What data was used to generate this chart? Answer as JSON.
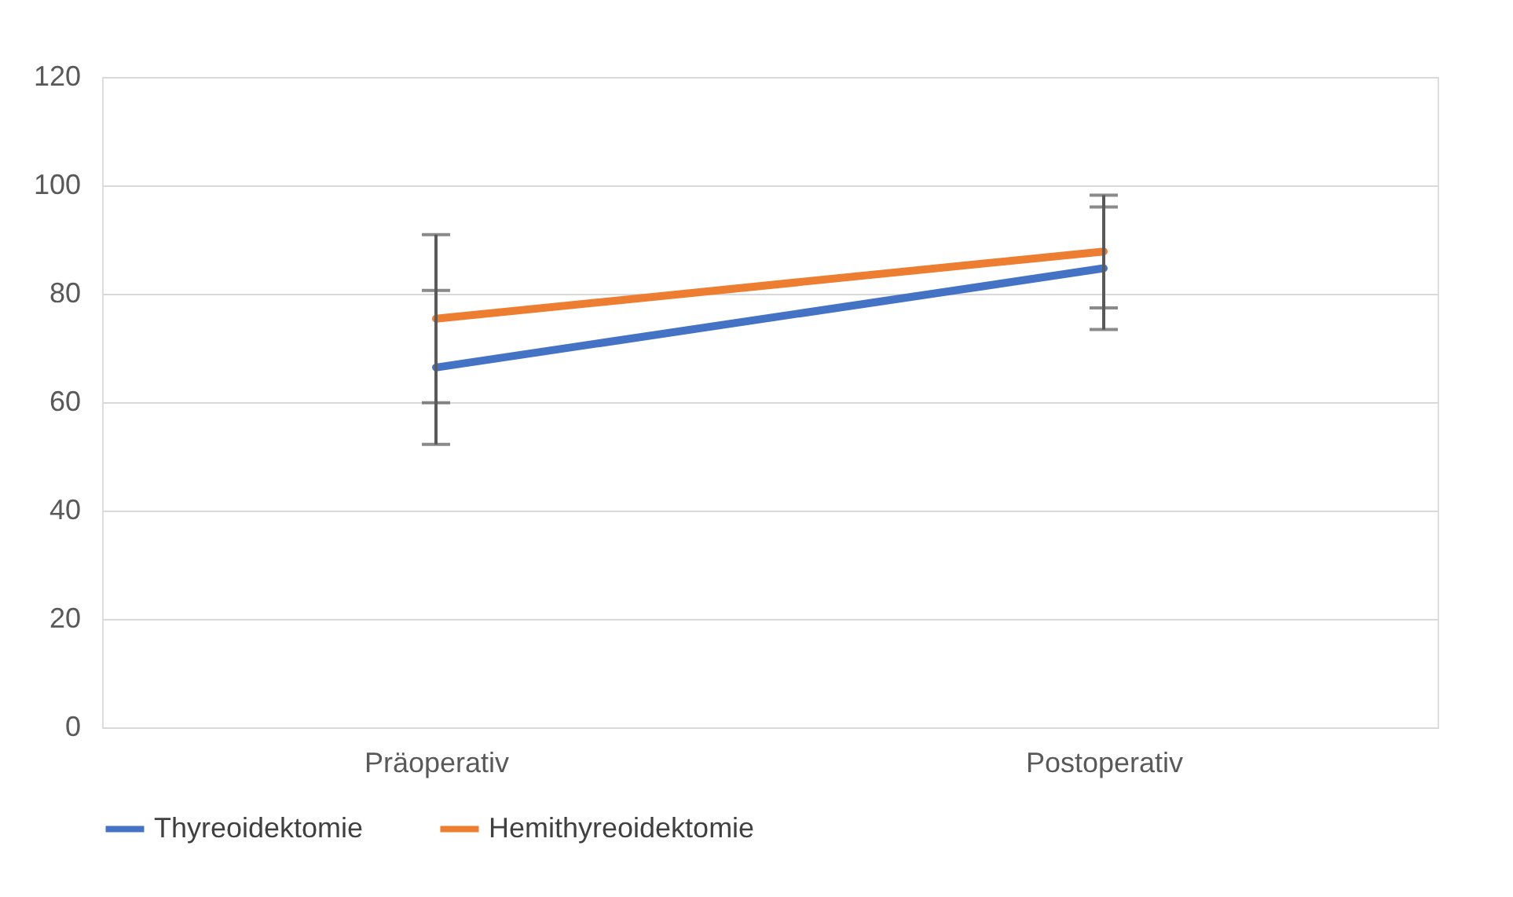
{
  "chart_data": {
    "type": "line",
    "categories": [
      "Präoperativ",
      "Postoperativ"
    ],
    "series": [
      {
        "name": "Thyreoidektomie",
        "color": "#4472c4",
        "values": [
          66.4,
          84.7
        ],
        "errors": [
          14.2,
          11.3
        ]
      },
      {
        "name": "Hemithyreoidektomie",
        "color": "#ed7d31",
        "values": [
          75.4,
          87.8
        ],
        "errors": [
          15.5,
          10.4
        ]
      }
    ],
    "ylim": [
      0,
      120
    ],
    "yticks": [
      0,
      20,
      40,
      60,
      80,
      100,
      120
    ],
    "grid": "y",
    "legend": "bottom",
    "marker": "none",
    "line_style": "solid"
  }
}
